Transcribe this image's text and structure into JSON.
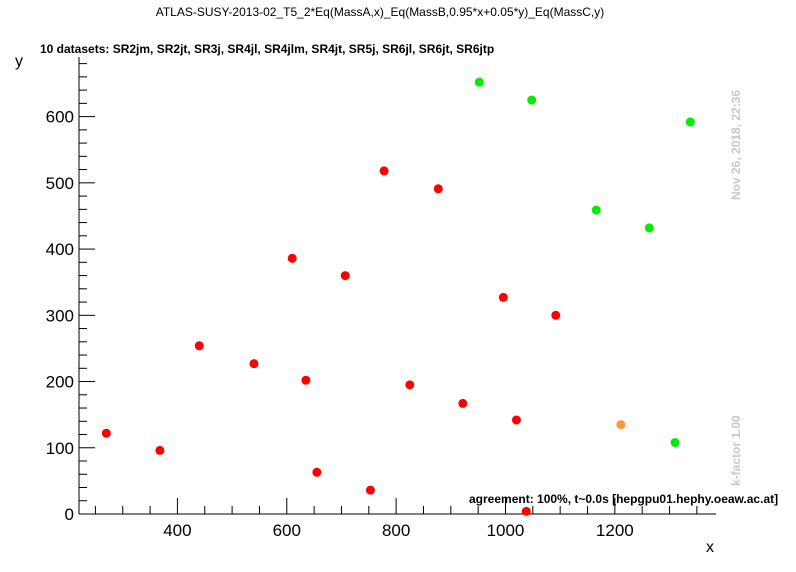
{
  "chart_data": {
    "type": "scatter",
    "title": "ATLAS-SUSY-2013-02_T5_2*Eq(MassA,x)_Eq(MassB,0.95*x+0.05*y)_Eq(MassC,y)",
    "subtitle": "10 datasets: SR2jm, SR2jt, SR3j, SR4jl, SR4jlm, SR4jt, SR5j, SR6jl, SR6jt, SR6jtp",
    "xlabel": "x",
    "ylabel": "y",
    "xlim": [
      220,
      1385
    ],
    "ylim": [
      0,
      690
    ],
    "xticks": [
      400,
      600,
      800,
      1000,
      1200
    ],
    "yticks": [
      0,
      100,
      200,
      300,
      400,
      500,
      600
    ],
    "grid": false,
    "side_text_top": "Nov 26, 2018, 22:36",
    "side_text_bottom": "k-factor 1.00",
    "annotation": "agreement: 100%, t~0.0s [hepgpu01.hephy.oeaw.ac.at]",
    "colors": {
      "excluded": "#ff0000",
      "allowed": "#00ee00",
      "borderline": "#ff9933"
    },
    "series": [
      {
        "status": "excluded",
        "color": "#ff0000",
        "points": [
          [
            270,
            122
          ],
          [
            368,
            96
          ],
          [
            440,
            254
          ],
          [
            540,
            227
          ],
          [
            610,
            386
          ],
          [
            635,
            202
          ],
          [
            655,
            63
          ],
          [
            707,
            360
          ],
          [
            753,
            36
          ],
          [
            778,
            518
          ],
          [
            825,
            195
          ],
          [
            877,
            491
          ],
          [
            922,
            167
          ],
          [
            996,
            327
          ],
          [
            1020,
            142
          ],
          [
            1038,
            4
          ],
          [
            1092,
            300
          ]
        ]
      },
      {
        "status": "allowed",
        "color": "#00ee00",
        "points": [
          [
            952,
            652
          ],
          [
            1048,
            625
          ],
          [
            1166,
            459
          ],
          [
            1263,
            432
          ],
          [
            1310,
            108
          ],
          [
            1338,
            592
          ]
        ]
      },
      {
        "status": "borderline",
        "color": "#ff9933",
        "points": [
          [
            1211,
            135
          ]
        ]
      }
    ]
  }
}
